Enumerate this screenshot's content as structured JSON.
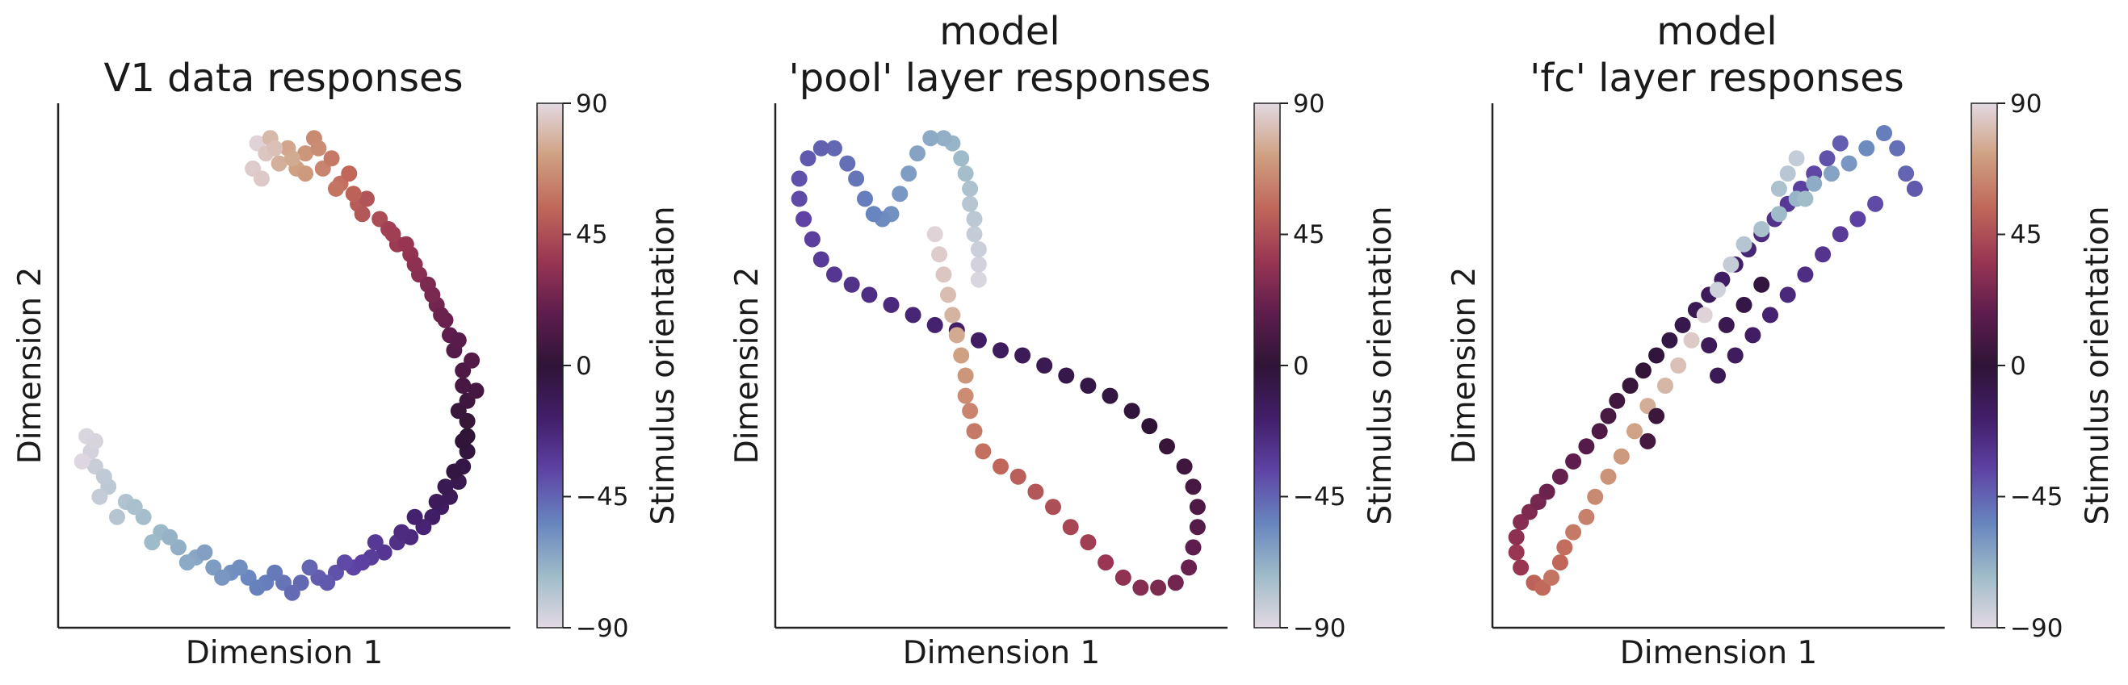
{
  "colormap": [
    "#e2d9e2",
    "#9ebbc9",
    "#6785be",
    "#5e43a5",
    "#421e69",
    "#2f1436",
    "#5e1d4d",
    "#9a3653",
    "#c0675a",
    "#cfa081",
    "#e2d9e2"
  ],
  "chart_data": [
    {
      "type": "scatter",
      "title_lines": [
        "V1 data responses"
      ],
      "xlabel": "Dimension 1",
      "ylabel": "Dimension 2",
      "colorbar_label": "Stimulus orientation",
      "colorbar_ticks": [
        "90",
        "45",
        "0",
        "−45",
        "−90"
      ],
      "colorbar_range": [
        -90,
        90
      ],
      "xlim": [
        0,
        1
      ],
      "ylim": [
        0,
        1
      ],
      "points_xyc": [
        [
          0.44,
          0.94,
          88
        ],
        [
          0.46,
          0.92,
          84
        ],
        [
          0.47,
          0.95,
          80
        ],
        [
          0.49,
          0.9,
          77
        ],
        [
          0.51,
          0.93,
          74
        ],
        [
          0.53,
          0.89,
          72
        ],
        [
          0.55,
          0.92,
          69
        ],
        [
          0.57,
          0.95,
          65
        ],
        [
          0.59,
          0.89,
          63
        ],
        [
          0.61,
          0.91,
          60
        ],
        [
          0.63,
          0.86,
          57
        ],
        [
          0.65,
          0.88,
          54
        ],
        [
          0.67,
          0.82,
          50
        ],
        [
          0.69,
          0.83,
          47
        ],
        [
          0.72,
          0.79,
          44
        ],
        [
          0.74,
          0.77,
          40
        ],
        [
          0.76,
          0.74,
          37
        ],
        [
          0.79,
          0.72,
          34
        ],
        [
          0.81,
          0.68,
          31
        ],
        [
          0.83,
          0.66,
          27
        ],
        [
          0.85,
          0.62,
          24
        ],
        [
          0.87,
          0.59,
          21
        ],
        [
          0.88,
          0.56,
          18
        ],
        [
          0.89,
          0.53,
          15
        ],
        [
          0.91,
          0.49,
          12
        ],
        [
          0.91,
          0.46,
          9
        ],
        [
          0.92,
          0.43,
          6
        ],
        [
          0.92,
          0.39,
          3
        ],
        [
          0.92,
          0.36,
          0
        ],
        [
          0.92,
          0.33,
          -3
        ],
        [
          0.91,
          0.3,
          -6
        ],
        [
          0.9,
          0.27,
          -9
        ],
        [
          0.88,
          0.24,
          -12
        ],
        [
          0.86,
          0.22,
          -15
        ],
        [
          0.84,
          0.2,
          -18
        ],
        [
          0.82,
          0.18,
          -21
        ],
        [
          0.79,
          0.16,
          -24
        ],
        [
          0.76,
          0.15,
          -27
        ],
        [
          0.73,
          0.13,
          -30
        ],
        [
          0.7,
          0.12,
          -33
        ],
        [
          0.66,
          0.1,
          -36
        ],
        [
          0.62,
          0.09,
          -40
        ],
        [
          0.58,
          0.08,
          -43
        ],
        [
          0.54,
          0.07,
          -46
        ],
        [
          0.5,
          0.07,
          -49
        ],
        [
          0.46,
          0.07,
          -52
        ],
        [
          0.42,
          0.08,
          -55
        ],
        [
          0.38,
          0.09,
          -58
        ],
        [
          0.34,
          0.1,
          -62
        ],
        [
          0.3,
          0.12,
          -65
        ],
        [
          0.26,
          0.14,
          -68
        ],
        [
          0.22,
          0.17,
          -71
        ],
        [
          0.18,
          0.2,
          -74
        ],
        [
          0.14,
          0.23,
          -77
        ],
        [
          0.1,
          0.26,
          -80
        ],
        [
          0.07,
          0.3,
          -83
        ],
        [
          0.06,
          0.33,
          -86
        ],
        [
          0.05,
          0.36,
          -88
        ],
        [
          0.43,
          0.89,
          86
        ],
        [
          0.48,
          0.93,
          82
        ],
        [
          0.52,
          0.91,
          75
        ],
        [
          0.58,
          0.93,
          66
        ],
        [
          0.62,
          0.85,
          58
        ],
        [
          0.68,
          0.8,
          48
        ],
        [
          0.75,
          0.76,
          39
        ],
        [
          0.8,
          0.7,
          32
        ],
        [
          0.86,
          0.6,
          22
        ],
        [
          0.93,
          0.51,
          14
        ],
        [
          0.9,
          0.41,
          4
        ],
        [
          0.89,
          0.29,
          -4
        ],
        [
          0.85,
          0.23,
          -13
        ],
        [
          0.8,
          0.2,
          -20
        ],
        [
          0.71,
          0.15,
          -31
        ],
        [
          0.64,
          0.11,
          -38
        ],
        [
          0.56,
          0.1,
          -45
        ],
        [
          0.48,
          0.09,
          -51
        ],
        [
          0.4,
          0.1,
          -57
        ],
        [
          0.32,
          0.13,
          -63
        ],
        [
          0.24,
          0.16,
          -69
        ],
        [
          0.16,
          0.22,
          -75
        ],
        [
          0.09,
          0.28,
          -81
        ],
        [
          0.07,
          0.35,
          -87
        ],
        [
          0.45,
          0.87,
          85
        ],
        [
          0.55,
          0.88,
          70
        ],
        [
          0.66,
          0.84,
          52
        ],
        [
          0.78,
          0.74,
          35
        ],
        [
          0.84,
          0.64,
          26
        ],
        [
          0.9,
          0.55,
          16
        ],
        [
          0.94,
          0.45,
          8
        ],
        [
          0.91,
          0.35,
          -1
        ],
        [
          0.87,
          0.26,
          -10
        ],
        [
          0.77,
          0.17,
          -25
        ],
        [
          0.68,
          0.11,
          -35
        ],
        [
          0.6,
          0.07,
          -42
        ],
        [
          0.52,
          0.05,
          -47
        ],
        [
          0.44,
          0.06,
          -53
        ],
        [
          0.36,
          0.08,
          -60
        ],
        [
          0.28,
          0.11,
          -66
        ],
        [
          0.2,
          0.15,
          -72
        ],
        [
          0.12,
          0.2,
          -78
        ],
        [
          0.08,
          0.24,
          -82
        ],
        [
          0.04,
          0.31,
          -89
        ]
      ]
    },
    {
      "type": "scatter",
      "title_lines": [
        "model",
        "'pool' layer responses"
      ],
      "xlabel": "Dimension 1",
      "ylabel": "Dimension 2",
      "colorbar_label": "Stimulus orientation",
      "colorbar_ticks": [
        "90",
        "45",
        "0",
        "−45",
        "−90"
      ],
      "colorbar_range": [
        -90,
        90
      ],
      "xlim": [
        0,
        1
      ],
      "ylim": [
        0,
        1
      ],
      "points_xyc": [
        [
          0.45,
          0.67,
          -88
        ],
        [
          0.45,
          0.7,
          -86
        ],
        [
          0.45,
          0.73,
          -84
        ],
        [
          0.44,
          0.76,
          -82
        ],
        [
          0.44,
          0.79,
          -80
        ],
        [
          0.43,
          0.82,
          -78
        ],
        [
          0.43,
          0.85,
          -76
        ],
        [
          0.42,
          0.88,
          -74
        ],
        [
          0.41,
          0.91,
          -72
        ],
        [
          0.39,
          0.94,
          -70
        ],
        [
          0.37,
          0.95,
          -68
        ],
        [
          0.34,
          0.95,
          -66
        ],
        [
          0.31,
          0.92,
          -64
        ],
        [
          0.29,
          0.88,
          -62
        ],
        [
          0.27,
          0.84,
          -60
        ],
        [
          0.25,
          0.8,
          -58
        ],
        [
          0.23,
          0.79,
          -56
        ],
        [
          0.21,
          0.8,
          -54
        ],
        [
          0.19,
          0.83,
          -52
        ],
        [
          0.17,
          0.87,
          -50
        ],
        [
          0.15,
          0.9,
          -48
        ],
        [
          0.12,
          0.93,
          -46
        ],
        [
          0.09,
          0.93,
          -44
        ],
        [
          0.06,
          0.91,
          -42
        ],
        [
          0.04,
          0.87,
          -40
        ],
        [
          0.04,
          0.83,
          -38
        ],
        [
          0.05,
          0.79,
          -36
        ],
        [
          0.07,
          0.75,
          -34
        ],
        [
          0.09,
          0.71,
          -32
        ],
        [
          0.12,
          0.68,
          -30
        ],
        [
          0.16,
          0.66,
          -28
        ],
        [
          0.2,
          0.64,
          -26
        ],
        [
          0.25,
          0.62,
          -24
        ],
        [
          0.3,
          0.6,
          -22
        ],
        [
          0.35,
          0.58,
          -20
        ],
        [
          0.4,
          0.57,
          -18
        ],
        [
          0.45,
          0.55,
          -16
        ],
        [
          0.5,
          0.53,
          -14
        ],
        [
          0.55,
          0.52,
          -12
        ],
        [
          0.6,
          0.5,
          -10
        ],
        [
          0.65,
          0.48,
          -8
        ],
        [
          0.7,
          0.46,
          -6
        ],
        [
          0.75,
          0.44,
          -4
        ],
        [
          0.8,
          0.41,
          -2
        ],
        [
          0.84,
          0.38,
          0
        ],
        [
          0.88,
          0.34,
          3
        ],
        [
          0.92,
          0.3,
          6
        ],
        [
          0.94,
          0.26,
          9
        ],
        [
          0.95,
          0.22,
          12
        ],
        [
          0.95,
          0.18,
          15
        ],
        [
          0.94,
          0.14,
          18
        ],
        [
          0.93,
          0.1,
          21
        ],
        [
          0.9,
          0.07,
          24
        ],
        [
          0.86,
          0.06,
          27
        ],
        [
          0.82,
          0.06,
          30
        ],
        [
          0.78,
          0.08,
          33
        ],
        [
          0.74,
          0.11,
          36
        ],
        [
          0.7,
          0.15,
          39
        ],
        [
          0.66,
          0.18,
          42
        ],
        [
          0.62,
          0.22,
          45
        ],
        [
          0.58,
          0.25,
          48
        ],
        [
          0.54,
          0.28,
          51
        ],
        [
          0.5,
          0.3,
          54
        ],
        [
          0.46,
          0.33,
          57
        ],
        [
          0.44,
          0.37,
          60
        ],
        [
          0.43,
          0.41,
          63
        ],
        [
          0.42,
          0.44,
          66
        ],
        [
          0.42,
          0.48,
          69
        ],
        [
          0.41,
          0.52,
          72
        ],
        [
          0.4,
          0.56,
          75
        ],
        [
          0.39,
          0.6,
          78
        ],
        [
          0.38,
          0.64,
          81
        ],
        [
          0.37,
          0.68,
          84
        ],
        [
          0.36,
          0.72,
          86
        ],
        [
          0.35,
          0.76,
          88
        ]
      ]
    },
    {
      "type": "scatter",
      "title_lines": [
        "model",
        "'fc' layer responses"
      ],
      "xlabel": "Dimension 1",
      "ylabel": "Dimension 2",
      "colorbar_label": "Stimulus orientation",
      "colorbar_ticks": [
        "90",
        "45",
        "0",
        "−45",
        "−90"
      ],
      "colorbar_range": [
        -90,
        90
      ],
      "xlim": [
        0,
        1
      ],
      "ylim": [
        0,
        1
      ],
      "points_xyc": [
        [
          0.05,
          0.1,
          35
        ],
        [
          0.04,
          0.13,
          36
        ],
        [
          0.04,
          0.16,
          32
        ],
        [
          0.05,
          0.19,
          30
        ],
        [
          0.07,
          0.21,
          28
        ],
        [
          0.09,
          0.23,
          25
        ],
        [
          0.11,
          0.25,
          22
        ],
        [
          0.14,
          0.28,
          20
        ],
        [
          0.17,
          0.31,
          18
        ],
        [
          0.2,
          0.34,
          15
        ],
        [
          0.23,
          0.37,
          12
        ],
        [
          0.25,
          0.4,
          10
        ],
        [
          0.27,
          0.43,
          7
        ],
        [
          0.3,
          0.46,
          4
        ],
        [
          0.33,
          0.49,
          1
        ],
        [
          0.36,
          0.52,
          -2
        ],
        [
          0.39,
          0.55,
          -5
        ],
        [
          0.42,
          0.58,
          -8
        ],
        [
          0.45,
          0.61,
          -10
        ],
        [
          0.48,
          0.64,
          -13
        ],
        [
          0.51,
          0.67,
          -16
        ],
        [
          0.54,
          0.7,
          -19
        ],
        [
          0.57,
          0.73,
          -22
        ],
        [
          0.6,
          0.76,
          -25
        ],
        [
          0.63,
          0.79,
          -28
        ],
        [
          0.66,
          0.82,
          -31
        ],
        [
          0.69,
          0.85,
          -34
        ],
        [
          0.72,
          0.88,
          -37
        ],
        [
          0.75,
          0.91,
          -40
        ],
        [
          0.78,
          0.94,
          -43
        ],
        [
          0.08,
          0.07,
          52
        ],
        [
          0.1,
          0.06,
          55
        ],
        [
          0.12,
          0.08,
          58
        ],
        [
          0.14,
          0.11,
          54
        ],
        [
          0.15,
          0.14,
          56
        ],
        [
          0.17,
          0.17,
          60
        ],
        [
          0.2,
          0.2,
          62
        ],
        [
          0.22,
          0.24,
          65
        ],
        [
          0.25,
          0.28,
          68
        ],
        [
          0.28,
          0.32,
          70
        ],
        [
          0.31,
          0.37,
          73
        ],
        [
          0.34,
          0.42,
          76
        ],
        [
          0.38,
          0.46,
          79
        ],
        [
          0.41,
          0.5,
          82
        ],
        [
          0.44,
          0.55,
          85
        ],
        [
          0.47,
          0.6,
          88
        ],
        [
          0.5,
          0.65,
          -85
        ],
        [
          0.53,
          0.7,
          -82
        ],
        [
          0.56,
          0.74,
          -78
        ],
        [
          0.6,
          0.77,
          -75
        ],
        [
          0.64,
          0.8,
          -72
        ],
        [
          0.68,
          0.83,
          -70
        ],
        [
          0.72,
          0.86,
          -67
        ],
        [
          0.76,
          0.88,
          -64
        ],
        [
          0.8,
          0.9,
          -60
        ],
        [
          0.84,
          0.93,
          -56
        ],
        [
          0.88,
          0.96,
          -52
        ],
        [
          0.91,
          0.93,
          -48
        ],
        [
          0.93,
          0.88,
          -45
        ],
        [
          0.95,
          0.85,
          -42
        ],
        [
          0.86,
          0.82,
          -38
        ],
        [
          0.82,
          0.79,
          -35
        ],
        [
          0.78,
          0.76,
          -32
        ],
        [
          0.74,
          0.72,
          -29
        ],
        [
          0.7,
          0.68,
          -26
        ],
        [
          0.66,
          0.64,
          -23
        ],
        [
          0.62,
          0.6,
          -20
        ],
        [
          0.58,
          0.56,
          -17
        ],
        [
          0.54,
          0.52,
          -14
        ],
        [
          0.5,
          0.48,
          -11
        ],
        [
          0.64,
          0.85,
          -76
        ],
        [
          0.66,
          0.88,
          -79
        ],
        [
          0.68,
          0.91,
          -82
        ],
        [
          0.7,
          0.83,
          -73
        ],
        [
          0.6,
          0.66,
          -3
        ],
        [
          0.56,
          0.62,
          -6
        ],
        [
          0.52,
          0.58,
          -9
        ],
        [
          0.48,
          0.54,
          -12
        ],
        [
          0.36,
          0.4,
          5
        ],
        [
          0.34,
          0.35,
          8
        ]
      ]
    }
  ]
}
